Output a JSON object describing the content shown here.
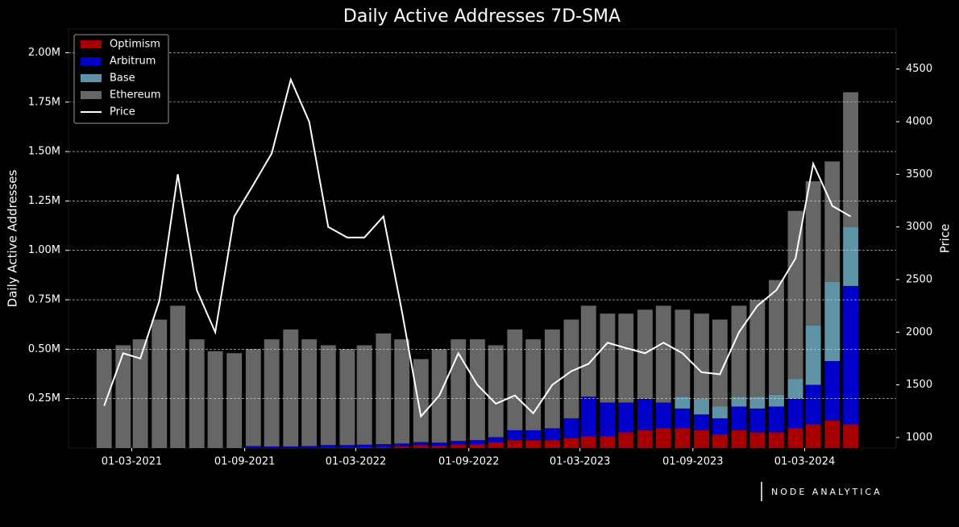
{
  "chart_data": {
    "type": "bar",
    "title": "Daily Active Addresses 7D-SMA",
    "ylabel": "Daily Active Addresses",
    "y2label": "Price",
    "watermark": "NODE ANALYTICA",
    "stacked": true,
    "grid": true,
    "legend": "upper-left",
    "x": [
      "2021-01-15",
      "2021-02-15",
      "2021-03-15",
      "2021-04-15",
      "2021-05-15",
      "2021-06-15",
      "2021-07-15",
      "2021-08-15",
      "2021-09-15",
      "2021-10-15",
      "2021-11-15",
      "2021-12-15",
      "2022-01-15",
      "2022-02-15",
      "2022-03-15",
      "2022-04-15",
      "2022-05-15",
      "2022-06-15",
      "2022-07-15",
      "2022-08-15",
      "2022-09-15",
      "2022-10-15",
      "2022-11-15",
      "2022-12-15",
      "2023-01-15",
      "2023-02-15",
      "2023-03-15",
      "2023-04-15",
      "2023-05-15",
      "2023-06-15",
      "2023-07-15",
      "2023-08-15",
      "2023-09-15",
      "2023-10-15",
      "2023-11-15",
      "2023-12-15",
      "2024-01-15",
      "2024-02-15",
      "2024-03-15",
      "2024-04-15",
      "2024-05-15"
    ],
    "xlim": [
      "2020-11-18",
      "2024-07-28"
    ],
    "xticks": [
      {
        "value": "2021-03-01",
        "label": "01-03-2021"
      },
      {
        "value": "2021-09-01",
        "label": "01-09-2021"
      },
      {
        "value": "2022-03-01",
        "label": "01-03-2022"
      },
      {
        "value": "2022-09-01",
        "label": "01-09-2022"
      },
      {
        "value": "2023-03-01",
        "label": "01-03-2023"
      },
      {
        "value": "2023-09-01",
        "label": "01-09-2023"
      },
      {
        "value": "2024-03-01",
        "label": "01-03-2024"
      }
    ],
    "ylim": [
      0,
      2120000
    ],
    "yticks": [
      {
        "value": 250000,
        "label": "0.25M"
      },
      {
        "value": 500000,
        "label": "0.50M"
      },
      {
        "value": 750000,
        "label": "0.75M"
      },
      {
        "value": 1000000,
        "label": "1.00M"
      },
      {
        "value": 1250000,
        "label": "1.25M"
      },
      {
        "value": 1500000,
        "label": "1.50M"
      },
      {
        "value": 1750000,
        "label": "1.75M"
      },
      {
        "value": 2000000,
        "label": "2.00M"
      }
    ],
    "y2lim": [
      900,
      4880
    ],
    "y2ticks": [
      1000,
      1500,
      2000,
      2500,
      3000,
      3500,
      4000,
      4500
    ],
    "series": [
      {
        "name": "Optimism",
        "type": "bar",
        "color": "#a80000",
        "values": [
          0,
          0,
          0,
          0,
          0,
          0,
          0,
          0,
          0,
          0,
          0,
          0,
          3000,
          3000,
          4000,
          5000,
          8000,
          15000,
          12000,
          18000,
          20000,
          30000,
          40000,
          40000,
          40000,
          50000,
          60000,
          60000,
          80000,
          90000,
          100000,
          100000,
          90000,
          70000,
          90000,
          80000,
          80000,
          100000,
          120000,
          140000,
          120000
        ]
      },
      {
        "name": "Arbitrum",
        "type": "bar",
        "color": "#0000c8",
        "values": [
          0,
          0,
          0,
          0,
          0,
          0,
          0,
          0,
          10000,
          8000,
          8000,
          10000,
          12000,
          12000,
          13000,
          15000,
          15000,
          15000,
          15000,
          18000,
          20000,
          25000,
          50000,
          50000,
          60000,
          100000,
          200000,
          170000,
          150000,
          160000,
          130000,
          100000,
          80000,
          80000,
          120000,
          120000,
          130000,
          150000,
          200000,
          300000,
          700000
        ]
      },
      {
        "name": "Base",
        "type": "bar",
        "color": "#5f93a8",
        "values": [
          0,
          0,
          0,
          0,
          0,
          0,
          0,
          0,
          0,
          0,
          0,
          0,
          0,
          0,
          0,
          0,
          0,
          0,
          0,
          0,
          0,
          0,
          0,
          0,
          0,
          0,
          0,
          0,
          0,
          0,
          0,
          60000,
          80000,
          60000,
          50000,
          60000,
          60000,
          100000,
          300000,
          400000,
          300000
        ]
      },
      {
        "name": "Ethereum",
        "type": "bar",
        "color": "#666666",
        "values": [
          500000,
          520000,
          550000,
          650000,
          720000,
          550000,
          490000,
          480000,
          490000,
          542000,
          592000,
          540000,
          505000,
          485000,
          503000,
          560000,
          527000,
          420000,
          473000,
          514000,
          510000,
          465000,
          510000,
          460000,
          500000,
          500000,
          460000,
          450000,
          450000,
          450000,
          490000,
          440000,
          430000,
          440000,
          460000,
          490000,
          580000,
          850000,
          730000,
          610000,
          680000
        ]
      },
      {
        "name": "Price",
        "type": "line",
        "axis": "y2",
        "color": "#ffffff",
        "values": [
          1300,
          1800,
          1750,
          2300,
          3500,
          2400,
          2000,
          3100,
          3400,
          3700,
          4400,
          4000,
          3000,
          2900,
          2900,
          3100,
          2200,
          1200,
          1400,
          1800,
          1500,
          1320,
          1400,
          1230,
          1500,
          1630,
          1700,
          1900,
          1850,
          1800,
          1900,
          1800,
          1620,
          1600,
          2000,
          2250,
          2400,
          2700,
          3600,
          3200,
          3100
        ]
      }
    ]
  }
}
